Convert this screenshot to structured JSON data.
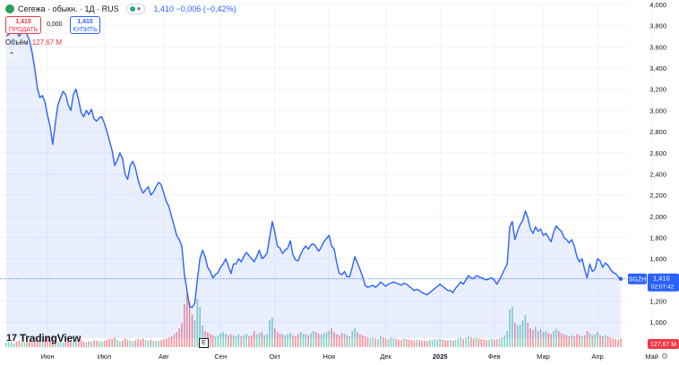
{
  "header": {
    "instrument": "Сегежа · обыкн. · 1Д · RUS",
    "quote": "1,410 −0,006 (−0,42%)",
    "sell_price": "1,410",
    "sell_label": "ПРОДАТЬ",
    "spread": "0,000",
    "buy_price": "1,410",
    "buy_label": "КУПИТЬ",
    "volume_label": "Объём",
    "volume_value": "127,67 M",
    "collapse_icon": "chevron-up-icon"
  },
  "branding": {
    "logo_text": "TradingView",
    "logo_mark": "17"
  },
  "markers": {
    "earnings": "E"
  },
  "colors": {
    "line": "#2962ff",
    "area_fill": "#2962ff",
    "volume_up": "#22ab94",
    "volume_down": "#f23645",
    "last_price_bg": "#2962ff",
    "volume_badge_bg": "#f23645"
  },
  "chart_data": {
    "type": "area",
    "symbol": "SGZH",
    "last_price": "1,410",
    "countdown": "02:07:42",
    "volume_last": "127,67 M",
    "ylim": [
      0.85,
      4.0
    ],
    "y_ticks": [
      "4,000",
      "3,800",
      "3,600",
      "3,400",
      "3,200",
      "3,000",
      "2,800",
      "2,600",
      "2,400",
      "2,200",
      "2,000",
      "1,800",
      "1,600",
      "1,400",
      "1,200",
      "1,000"
    ],
    "y_tick_values": [
      4.0,
      3.8,
      3.6,
      3.4,
      3.2,
      3.0,
      2.8,
      2.6,
      2.4,
      2.2,
      2.0,
      1.8,
      1.6,
      1.4,
      1.2,
      1.0
    ],
    "x_ticks": [
      "Июн",
      "Июл",
      "Авг",
      "Сен",
      "Окт",
      "Ноя",
      "Дек",
      "2025",
      "Фев",
      "Мар",
      "Апр",
      "Май"
    ],
    "x_tick_index": [
      16,
      38,
      61,
      83,
      104,
      125,
      147,
      168,
      189,
      208,
      229,
      250
    ],
    "price": [
      3.7,
      3.72,
      3.76,
      3.78,
      3.74,
      3.7,
      3.74,
      3.77,
      3.72,
      3.66,
      3.55,
      3.4,
      3.22,
      3.12,
      3.14,
      3.08,
      2.95,
      2.85,
      2.68,
      2.88,
      3.05,
      3.12,
      3.18,
      3.15,
      3.05,
      3.0,
      3.15,
      3.2,
      3.1,
      2.98,
      2.94,
      3.0,
      2.96,
      3.01,
      2.92,
      2.9,
      2.93,
      2.94,
      2.88,
      2.8,
      2.71,
      2.62,
      2.48,
      2.53,
      2.6,
      2.55,
      2.4,
      2.35,
      2.48,
      2.52,
      2.46,
      2.35,
      2.27,
      2.22,
      2.25,
      2.28,
      2.2,
      2.23,
      2.28,
      2.32,
      2.3,
      2.22,
      2.14,
      2.09,
      2.0,
      1.91,
      1.82,
      1.78,
      1.72,
      1.45,
      1.3,
      1.15,
      1.14,
      1.18,
      1.4,
      1.6,
      1.68,
      1.62,
      1.52,
      1.48,
      1.42,
      1.45,
      1.47,
      1.52,
      1.55,
      1.6,
      1.53,
      1.46,
      1.55,
      1.55,
      1.6,
      1.57,
      1.62,
      1.66,
      1.63,
      1.6,
      1.57,
      1.62,
      1.68,
      1.6,
      1.62,
      1.65,
      1.8,
      1.95,
      1.85,
      1.72,
      1.7,
      1.65,
      1.68,
      1.7,
      1.77,
      1.64,
      1.59,
      1.58,
      1.64,
      1.69,
      1.72,
      1.69,
      1.73,
      1.74,
      1.71,
      1.67,
      1.71,
      1.76,
      1.79,
      1.82,
      1.72,
      1.69,
      1.56,
      1.46,
      1.45,
      1.48,
      1.43,
      1.43,
      1.52,
      1.62,
      1.56,
      1.5,
      1.43,
      1.35,
      1.33,
      1.34,
      1.35,
      1.33,
      1.35,
      1.38,
      1.36,
      1.34,
      1.36,
      1.37,
      1.38,
      1.37,
      1.36,
      1.35,
      1.37,
      1.36,
      1.34,
      1.32,
      1.3,
      1.31,
      1.3,
      1.28,
      1.27,
      1.26,
      1.28,
      1.3,
      1.32,
      1.34,
      1.36,
      1.34,
      1.32,
      1.3,
      1.3,
      1.28,
      1.32,
      1.35,
      1.38,
      1.36,
      1.4,
      1.44,
      1.42,
      1.41,
      1.44,
      1.43,
      1.42,
      1.41,
      1.4,
      1.41,
      1.42,
      1.4,
      1.36,
      1.4,
      1.45,
      1.5,
      1.55,
      1.9,
      1.95,
      1.78,
      1.86,
      1.92,
      1.96,
      2.05,
      1.99,
      1.88,
      1.84,
      1.9,
      1.86,
      1.88,
      1.82,
      1.84,
      1.8,
      1.76,
      1.85,
      1.91,
      1.88,
      1.86,
      1.8,
      1.78,
      1.75,
      1.78,
      1.72,
      1.62,
      1.57,
      1.6,
      1.5,
      1.42,
      1.55,
      1.48,
      1.5,
      1.6,
      1.58,
      1.52,
      1.56,
      1.54,
      1.5,
      1.47,
      1.46,
      1.43,
      1.41
    ],
    "volume": [
      0.08,
      0.1,
      0.09,
      0.07,
      0.1,
      0.12,
      0.08,
      0.09,
      0.11,
      0.14,
      0.1,
      0.12,
      0.16,
      0.13,
      0.11,
      0.15,
      0.18,
      0.14,
      0.22,
      0.12,
      0.1,
      0.11,
      0.09,
      0.13,
      0.15,
      0.1,
      0.12,
      0.11,
      0.12,
      0.14,
      0.1,
      0.09,
      0.11,
      0.1,
      0.13,
      0.12,
      0.11,
      0.1,
      0.12,
      0.14,
      0.16,
      0.15,
      0.18,
      0.13,
      0.11,
      0.12,
      0.16,
      0.14,
      0.12,
      0.11,
      0.13,
      0.15,
      0.14,
      0.16,
      0.13,
      0.12,
      0.14,
      0.12,
      0.11,
      0.12,
      0.13,
      0.15,
      0.16,
      0.18,
      0.2,
      0.24,
      0.28,
      0.35,
      0.45,
      0.8,
      1.0,
      0.85,
      0.6,
      0.5,
      0.9,
      0.75,
      0.4,
      0.3,
      0.28,
      0.25,
      0.22,
      0.2,
      0.22,
      0.26,
      0.28,
      0.25,
      0.22,
      0.24,
      0.22,
      0.2,
      0.24,
      0.2,
      0.22,
      0.25,
      0.2,
      0.22,
      0.3,
      0.24,
      0.26,
      0.28,
      0.22,
      0.24,
      0.5,
      0.55,
      0.35,
      0.28,
      0.25,
      0.24,
      0.22,
      0.24,
      0.26,
      0.22,
      0.2,
      0.24,
      0.28,
      0.25,
      0.24,
      0.22,
      0.26,
      0.3,
      0.28,
      0.25,
      0.24,
      0.26,
      0.28,
      0.3,
      0.35,
      0.28,
      0.24,
      0.22,
      0.26,
      0.25,
      0.22,
      0.2,
      0.3,
      0.35,
      0.28,
      0.24,
      0.22,
      0.2,
      0.18,
      0.16,
      0.18,
      0.16,
      0.15,
      0.2,
      0.18,
      0.16,
      0.15,
      0.18,
      0.16,
      0.15,
      0.14,
      0.13,
      0.16,
      0.15,
      0.14,
      0.13,
      0.12,
      0.14,
      0.13,
      0.12,
      0.12,
      0.11,
      0.14,
      0.13,
      0.15,
      0.14,
      0.16,
      0.14,
      0.13,
      0.12,
      0.13,
      0.12,
      0.14,
      0.16,
      0.18,
      0.15,
      0.17,
      0.2,
      0.18,
      0.16,
      0.18,
      0.16,
      0.15,
      0.14,
      0.13,
      0.14,
      0.16,
      0.14,
      0.15,
      0.16,
      0.18,
      0.22,
      0.3,
      0.7,
      0.75,
      0.45,
      0.4,
      0.42,
      0.5,
      0.6,
      0.45,
      0.35,
      0.32,
      0.38,
      0.3,
      0.34,
      0.28,
      0.3,
      0.26,
      0.24,
      0.3,
      0.34,
      0.3,
      0.26,
      0.24,
      0.22,
      0.2,
      0.22,
      0.2,
      0.24,
      0.22,
      0.2,
      0.22,
      0.3,
      0.26,
      0.22,
      0.24,
      0.28,
      0.22,
      0.2,
      0.22,
      0.2,
      0.18,
      0.16,
      0.15,
      0.14,
      0.16
    ]
  }
}
